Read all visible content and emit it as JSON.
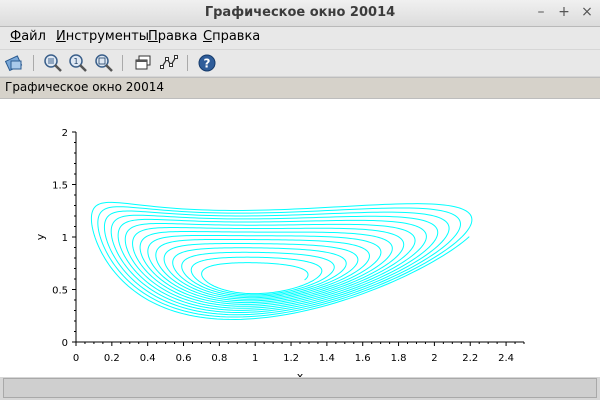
{
  "window": {
    "title": "Графическое окно 20014"
  },
  "menu": {
    "items": [
      {
        "u": "Ф",
        "rest": "айл"
      },
      {
        "u": "И",
        "rest": "нструменты"
      },
      {
        "u": "П",
        "rest": "равка"
      },
      {
        "u": "С",
        "rest": "правка"
      }
    ]
  },
  "toolbar": {
    "icons": [
      "rotate-icon",
      "zoom-grid-icon",
      "zoom-fit-icon",
      "zoom-icon",
      "windows-icon",
      "datatip-icon",
      "help-icon"
    ]
  },
  "caption": "Графическое окно 20014",
  "chart_data": {
    "type": "line",
    "title": "",
    "xlabel": "x",
    "ylabel": "y",
    "xlim": [
      0,
      2.5
    ],
    "ylim": [
      0,
      2
    ],
    "xticks": [
      "0",
      "0.2",
      "0.4",
      "0.6",
      "0.8",
      "1",
      "1.2",
      "1.4",
      "1.6",
      "1.8",
      "2",
      "2.2",
      "2.4"
    ],
    "yticks": [
      "0",
      "0.5",
      "1",
      "1.5",
      "2"
    ],
    "series": [
      {
        "color": "#00ffff",
        "shape": "spiral trajectory from outer orbit (x≈0.17–2.17, y≈0.02–1.52) inward toward center (1, 0.5)"
      }
    ]
  }
}
